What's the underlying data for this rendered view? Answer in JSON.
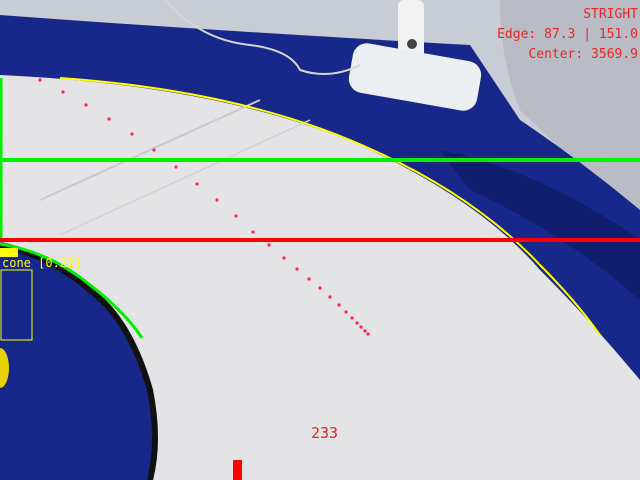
{
  "hud": {
    "mode": "STRIGHT",
    "edge": "Edge: 87.3 | 151.0",
    "center": "Center: 3569.9",
    "steering_value": "233",
    "text_color": "#e8262a"
  },
  "detection": {
    "label": "cone [0.22]",
    "label_color": "#ffff00",
    "box_color": "#ffff00"
  },
  "overlay_colors": {
    "green_line": "#00ee00",
    "red_line": "#ff0000",
    "edge_contour": "#ffff00",
    "path_dots": "#ff1f6b",
    "steering_marker": "#ff0000"
  },
  "scene_colors": {
    "mat_blue": "#17278a",
    "track_white": "#e4e4e6",
    "wall": "#cfd4dc"
  }
}
